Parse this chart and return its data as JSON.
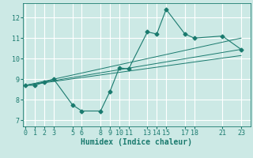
{
  "title": "",
  "xlabel": "Humidex (Indice chaleur)",
  "ylabel": "",
  "bg_color": "#cce9e5",
  "grid_color": "#ffffff",
  "line_color": "#1a7a6e",
  "xticks": [
    0,
    1,
    2,
    3,
    5,
    6,
    8,
    9,
    10,
    11,
    13,
    14,
    15,
    17,
    18,
    21,
    23
  ],
  "yticks": [
    7,
    8,
    9,
    10,
    11,
    12
  ],
  "xlim": [
    -0.3,
    24.0
  ],
  "ylim": [
    6.7,
    12.7
  ],
  "series": [
    {
      "x": [
        0,
        1,
        2,
        3,
        5,
        6,
        8,
        9,
        10,
        11,
        13,
        14,
        15,
        17,
        18,
        21,
        23
      ],
      "y": [
        8.7,
        8.7,
        8.85,
        9.0,
        7.75,
        7.45,
        7.45,
        8.4,
        9.55,
        9.5,
        11.3,
        11.2,
        12.4,
        11.2,
        11.0,
        11.1,
        10.45
      ]
    },
    {
      "x": [
        0,
        23
      ],
      "y": [
        8.7,
        10.45
      ]
    },
    {
      "x": [
        0,
        23
      ],
      "y": [
        8.7,
        11.0
      ]
    },
    {
      "x": [
        0,
        23
      ],
      "y": [
        8.7,
        10.15
      ]
    }
  ]
}
